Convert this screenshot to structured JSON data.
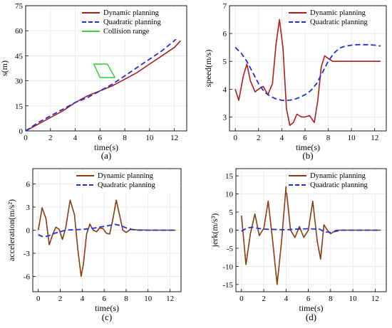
{
  "panels": [
    {
      "id": "a",
      "panel_label": "(a)",
      "chart_data": {
        "type": "line",
        "xlabel": "time(s)",
        "ylabel": "s(m)",
        "xlim": [
          0,
          13
        ],
        "ylim": [
          0,
          75
        ],
        "xticks": [
          0,
          2,
          4,
          6,
          8,
          10,
          12
        ],
        "yticks": [
          0,
          15,
          30,
          45,
          60,
          75
        ],
        "xtick_labels": [
          "0",
          "2",
          "4",
          "6",
          "8",
          "10",
          "12"
        ],
        "ytick_labels": [
          "0",
          "15",
          "30",
          "45",
          "60",
          "75"
        ],
        "grid": true,
        "legend_position": "top-right",
        "series": [
          {
            "name": "Dynamic planning",
            "color": "#b01c1c",
            "style": "solid",
            "x": [
              0,
              1,
              2,
              3,
              4,
              5,
              6,
              7,
              8,
              9,
              10,
              11,
              12,
              12.5
            ],
            "y": [
              0,
              4,
              8,
              12,
              17,
              21,
              24,
              27,
              31,
              35,
              40,
              45,
              50,
              54
            ]
          },
          {
            "name": "Quadratic planning",
            "color": "#1f2fd8",
            "style": "dashed",
            "x": [
              0,
              1,
              2,
              3,
              4,
              5,
              6,
              7,
              8,
              9,
              10,
              11,
              12,
              12.5
            ],
            "y": [
              0,
              5,
              9,
              13,
              17,
              20,
              24,
              28,
              33,
              38,
              43,
              48,
              54,
              58
            ]
          },
          {
            "name": "Collision range",
            "color": "#3ecf3e",
            "style": "solid",
            "closed": true,
            "x": [
              5.5,
              6.6,
              7.2,
              6.0,
              5.5
            ],
            "y": [
              40,
              40,
              32,
              32,
              40
            ]
          }
        ]
      }
    },
    {
      "id": "b",
      "panel_label": "(b)",
      "chart_data": {
        "type": "line",
        "xlabel": "time(s)",
        "ylabel": "speed(m/s)",
        "xlim": [
          -0.5,
          13
        ],
        "ylim": [
          2.5,
          7
        ],
        "xticks": [
          0,
          2,
          4,
          6,
          8,
          10,
          12
        ],
        "yticks": [
          3,
          4,
          5,
          6,
          7
        ],
        "xtick_labels": [
          "0",
          "2",
          "4",
          "6",
          "8",
          "10",
          "12"
        ],
        "ytick_labels": [
          "3",
          "4",
          "5",
          "6",
          "7"
        ],
        "grid": true,
        "legend_position": "top-right",
        "series": [
          {
            "name": "Dynamic planning",
            "color": "#b01c1c",
            "style": "solid",
            "x": [
              0,
              0.3,
              0.7,
              1.0,
              1.3,
              1.7,
              2.0,
              2.4,
              2.8,
              3.2,
              3.5,
              3.8,
              4.1,
              4.4,
              4.7,
              5.0,
              5.3,
              5.7,
              6.0,
              6.4,
              6.8,
              7.1,
              7.4,
              7.7,
              8.0,
              8.4,
              9,
              10,
              11,
              12,
              12.5
            ],
            "y": [
              4.0,
              3.6,
              4.5,
              4.9,
              4.3,
              3.9,
              4.0,
              4.1,
              3.8,
              4.2,
              5.6,
              6.5,
              5.5,
              3.3,
              2.7,
              2.8,
              3.1,
              3.0,
              3.0,
              3.05,
              2.8,
              3.6,
              4.8,
              5.2,
              5.1,
              5.0,
              5.0,
              5.0,
              5.0,
              5.0,
              5.0
            ]
          },
          {
            "name": "Quadratic planning",
            "color": "#1f2fd8",
            "style": "dashed",
            "x": [
              0,
              0.5,
              1,
              1.5,
              2,
              2.5,
              3,
              3.5,
              4,
              4.5,
              5,
              5.5,
              6,
              6.5,
              7,
              7.5,
              8,
              8.5,
              9,
              9.5,
              10,
              10.5,
              11,
              11.5,
              12,
              12.5
            ],
            "y": [
              5.5,
              5.3,
              5.0,
              4.6,
              4.2,
              3.9,
              3.75,
              3.65,
              3.6,
              3.6,
              3.62,
              3.7,
              3.8,
              3.95,
              4.2,
              4.6,
              5.0,
              5.3,
              5.48,
              5.55,
              5.58,
              5.6,
              5.6,
              5.6,
              5.58,
              5.55
            ]
          }
        ]
      }
    },
    {
      "id": "c",
      "panel_label": "(c)",
      "chart_data": {
        "type": "line",
        "xlabel": "time(s)",
        "ylabel": "acceleration(m/s²)",
        "xlim": [
          -0.5,
          13
        ],
        "ylim": [
          -8,
          8
        ],
        "xticks": [
          0,
          2,
          4,
          6,
          8,
          10,
          12
        ],
        "yticks": [
          -6,
          -3,
          0,
          3,
          6
        ],
        "xtick_labels": [
          "0",
          "2",
          "4",
          "6",
          "8",
          "10",
          "12"
        ],
        "ytick_labels": [
          "-6",
          "-3",
          "0",
          "3",
          "6"
        ],
        "grid": true,
        "legend_position": "top-right",
        "series": [
          {
            "name": "Dynamic planning",
            "color": "#8a3a10",
            "style": "solid",
            "x": [
              0,
              0.35,
              0.7,
              1.0,
              1.3,
              1.6,
              1.9,
              2.2,
              2.5,
              2.9,
              3.3,
              3.6,
              3.9,
              4.1,
              4.4,
              4.7,
              5.0,
              5.3,
              5.6,
              5.9,
              6.2,
              6.5,
              6.8,
              7.1,
              7.4,
              7.7,
              8.0,
              8.4,
              9,
              10,
              11,
              12,
              12.5
            ],
            "y": [
              0,
              2.9,
              1.5,
              -1.9,
              -0.6,
              0.4,
              0.1,
              -1.2,
              0.3,
              3.9,
              2.0,
              -2.5,
              -6.0,
              -4.5,
              -0.5,
              0.8,
              0.0,
              -0.2,
              0.3,
              0.2,
              -0.4,
              -0.5,
              1.5,
              3.9,
              2.0,
              0.0,
              -0.3,
              0.1,
              0.05,
              0,
              0,
              0,
              0
            ]
          },
          {
            "name": "Quadratic planning",
            "color": "#1f2fd8",
            "style": "dashed",
            "x": [
              0,
              0.5,
              1,
              1.5,
              2,
              2.5,
              3,
              4,
              5,
              6,
              7,
              7.5,
              8,
              8.5,
              9,
              10,
              11,
              12,
              12.5
            ],
            "y": [
              -0.6,
              -0.9,
              -0.7,
              -0.4,
              -0.2,
              0.0,
              0.05,
              0.1,
              0.25,
              0.5,
              0.75,
              0.6,
              0.3,
              0.1,
              0.0,
              0,
              0,
              0,
              0
            ]
          }
        ]
      }
    },
    {
      "id": "d",
      "panel_label": "(d)",
      "chart_data": {
        "type": "line",
        "xlabel": "time(s)",
        "ylabel": "jerk(m/s³)",
        "xlim": [
          -0.5,
          13
        ],
        "ylim": [
          -17,
          17
        ],
        "xticks": [
          0,
          2,
          4,
          6,
          8,
          10,
          12
        ],
        "yticks": [
          -15,
          -10,
          -5,
          0,
          5,
          10,
          15
        ],
        "xtick_labels": [
          "0",
          "2",
          "4",
          "6",
          "8",
          "10",
          "12"
        ],
        "ytick_labels": [
          "-15",
          "-10",
          "-5",
          "0",
          "5",
          "10",
          "15"
        ],
        "grid": true,
        "legend_position": "top-right",
        "series": [
          {
            "name": "Dynamic planning",
            "color": "#8a3a10",
            "style": "solid",
            "x": [
              0,
              0.4,
              0.8,
              1.2,
              1.6,
              2.0,
              2.4,
              2.8,
              3.2,
              3.6,
              4.0,
              4.4,
              4.8,
              5.2,
              5.6,
              6.0,
              6.4,
              6.8,
              7.1,
              7.4,
              7.7,
              8.0,
              8.5,
              9,
              10,
              11,
              12,
              12.5
            ],
            "y": [
              4,
              -9.5,
              -1,
              4.5,
              -1.5,
              0.5,
              8,
              -3,
              -15,
              -3,
              12,
              0,
              -2,
              1,
              -2,
              0,
              8,
              -3,
              -8,
              1.5,
              0,
              -1,
              0,
              0,
              0,
              0,
              0,
              0
            ]
          },
          {
            "name": "Quadratic planning",
            "color": "#1f2fd8",
            "style": "dashed",
            "x": [
              0,
              0.5,
              1,
              1.5,
              2,
              3,
              4,
              5,
              6,
              7,
              7.5,
              8,
              8.5,
              9,
              10,
              11,
              12,
              12.5
            ],
            "y": [
              -0.3,
              0.6,
              0.8,
              0.5,
              0.3,
              0.2,
              0.1,
              0.3,
              0.4,
              0.3,
              -0.5,
              -0.6,
              -0.3,
              0,
              0,
              0,
              0,
              0
            ]
          }
        ]
      }
    }
  ]
}
